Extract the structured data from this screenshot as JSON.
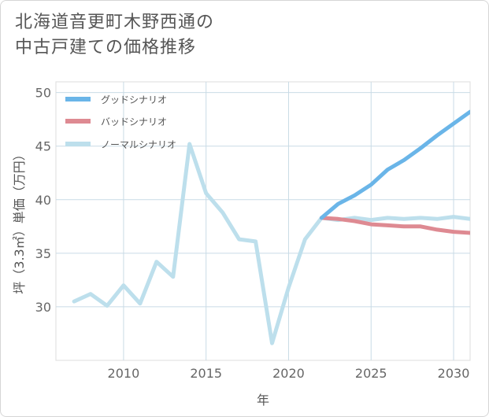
{
  "title_lines": [
    "北海道音更町木野西通の",
    "中古戸建ての価格推移"
  ],
  "chart_data": {
    "type": "line",
    "xlabel": "年",
    "ylabel": "坪（3.3㎡）単価（万円）",
    "xlim": [
      2005.9,
      2031
    ],
    "ylim": [
      25,
      51
    ],
    "xticks": [
      2010,
      2015,
      2020,
      2025,
      2030
    ],
    "yticks": [
      30,
      35,
      40,
      45,
      50
    ],
    "grid": true,
    "legend_position": "top-left",
    "series": [
      {
        "name": "グッドシナリオ",
        "color": "#6ab5e8",
        "x": [
          2022,
          2023,
          2024,
          2025,
          2026,
          2027,
          2028,
          2029,
          2030,
          2031
        ],
        "values": [
          38.3,
          39.6,
          40.4,
          41.4,
          42.8,
          43.7,
          44.8,
          46.0,
          47.1,
          48.2
        ]
      },
      {
        "name": "バッドシナリオ",
        "color": "#de8a92",
        "x": [
          2022,
          2023,
          2024,
          2025,
          2026,
          2027,
          2028,
          2029,
          2030,
          2031
        ],
        "values": [
          38.3,
          38.2,
          38.0,
          37.7,
          37.6,
          37.5,
          37.5,
          37.2,
          37.0,
          36.9
        ]
      },
      {
        "name": "ノーマルシナリオ",
        "color": "#bddfec",
        "x": [
          2007,
          2008,
          2009,
          2010,
          2011,
          2012,
          2013,
          2014,
          2015,
          2016,
          2017,
          2018,
          2019,
          2020,
          2021,
          2022,
          2023,
          2024,
          2025,
          2026,
          2027,
          2028,
          2029,
          2030,
          2031
        ],
        "values": [
          30.5,
          31.2,
          30.1,
          32.0,
          30.3,
          34.2,
          32.8,
          45.2,
          40.6,
          38.8,
          36.3,
          36.1,
          26.6,
          31.8,
          36.3,
          38.3,
          38.1,
          38.3,
          38.1,
          38.3,
          38.2,
          38.3,
          38.2,
          38.4,
          38.2
        ]
      }
    ]
  }
}
